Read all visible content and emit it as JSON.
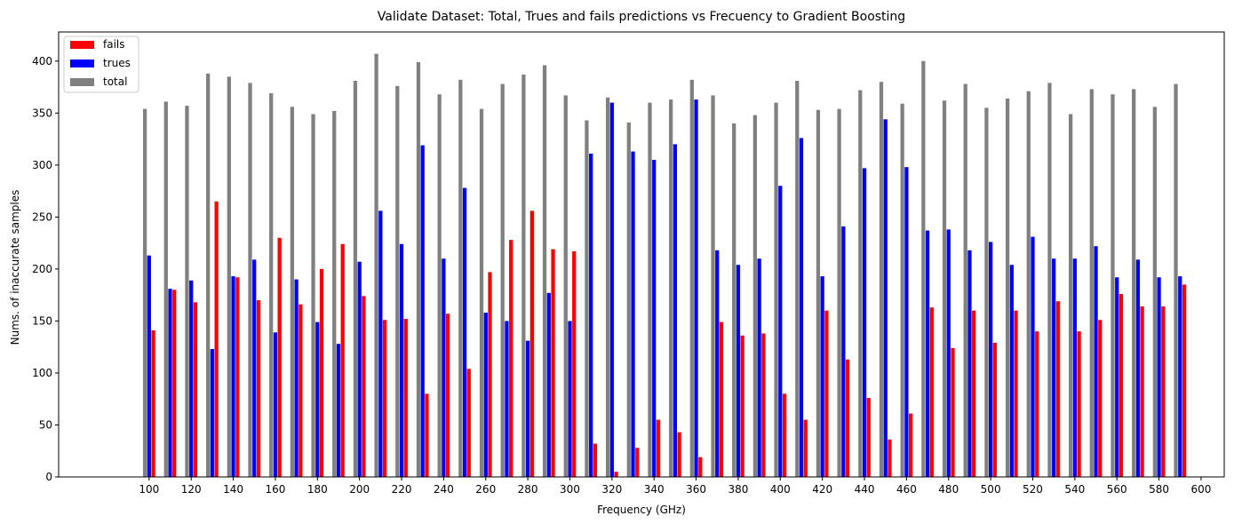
{
  "chart_data": {
    "type": "bar",
    "title": "Validate Dataset: Total, Trues and fails predictions vs Frecuency to Gradient Boosting",
    "xlabel": "Frequency (GHz)",
    "ylabel": "Nums. of inaccurate samples",
    "xlim": [
      57,
      611
    ],
    "ylim": [
      0,
      428
    ],
    "x_ticks": [
      100,
      120,
      140,
      160,
      180,
      200,
      220,
      240,
      260,
      280,
      300,
      320,
      340,
      360,
      380,
      400,
      420,
      440,
      460,
      480,
      500,
      520,
      540,
      560,
      580,
      600
    ],
    "y_ticks": [
      0,
      50,
      100,
      150,
      200,
      250,
      300,
      350,
      400
    ],
    "x": [
      100,
      110,
      120,
      130,
      140,
      150,
      160,
      170,
      180,
      190,
      200,
      210,
      220,
      230,
      240,
      250,
      260,
      270,
      280,
      290,
      300,
      310,
      320,
      330,
      340,
      350,
      360,
      370,
      380,
      390,
      400,
      410,
      420,
      430,
      440,
      450,
      460,
      470,
      480,
      490,
      500,
      510,
      520,
      530,
      540,
      550,
      560,
      570,
      580,
      590
    ],
    "legend_position": "upper-left",
    "grid": false,
    "series": [
      {
        "name": "fails",
        "color": "#ff0000",
        "offset": 2,
        "values": [
          141,
          180,
          168,
          265,
          192,
          170,
          230,
          166,
          200,
          224,
          174,
          151,
          152,
          80,
          157,
          104,
          197,
          228,
          256,
          219,
          217,
          32,
          5,
          28,
          55,
          43,
          19,
          149,
          136,
          138,
          80,
          55,
          160,
          113,
          76,
          36,
          61,
          163,
          124,
          160,
          129,
          160,
          140,
          169,
          140,
          151,
          176,
          164,
          164,
          185
        ]
      },
      {
        "name": "trues",
        "color": "#0000ff",
        "offset": 0,
        "values": [
          213,
          181,
          189,
          123,
          193,
          209,
          139,
          190,
          149,
          128,
          207,
          256,
          224,
          319,
          210,
          278,
          158,
          150,
          131,
          177,
          150,
          311,
          360,
          313,
          305,
          320,
          363,
          218,
          204,
          210,
          280,
          326,
          193,
          241,
          297,
          344,
          298,
          237,
          238,
          218,
          226,
          204,
          231,
          210,
          210,
          222,
          192,
          209,
          192,
          193
        ]
      },
      {
        "name": "total",
        "color": "#808080",
        "offset": -2,
        "values": [
          354,
          361,
          357,
          388,
          385,
          379,
          369,
          356,
          349,
          352,
          381,
          407,
          376,
          399,
          368,
          382,
          354,
          378,
          387,
          396,
          367,
          343,
          365,
          341,
          360,
          363,
          382,
          367,
          340,
          348,
          360,
          381,
          353,
          354,
          372,
          380,
          359,
          400,
          362,
          378,
          355,
          364,
          371,
          379,
          349,
          373,
          368,
          373,
          356,
          378
        ]
      }
    ]
  }
}
